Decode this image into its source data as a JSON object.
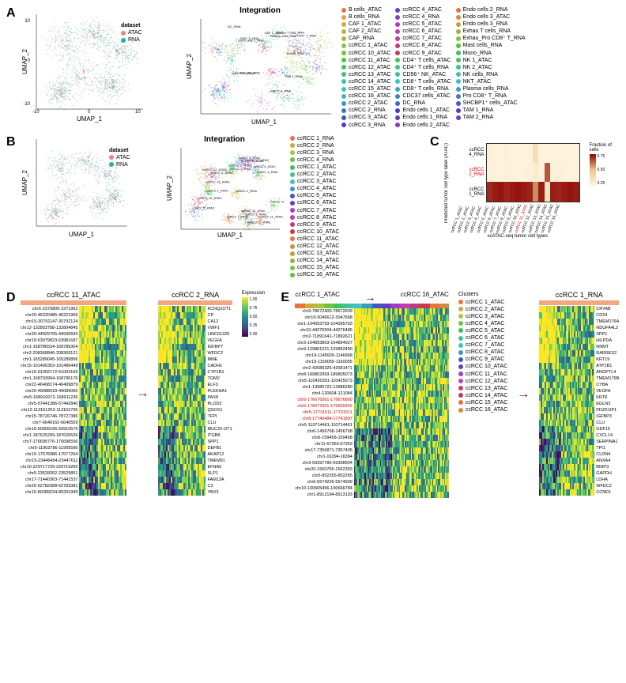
{
  "panelA": {
    "label": "A",
    "title": "Integration",
    "xlabel": "UMAP_1",
    "ylabel": "UMAP_2",
    "xlim": [
      -15,
      15
    ],
    "ylim": [
      -15,
      15
    ],
    "dataset_legend": {
      "title": "dataset",
      "items": [
        {
          "label": "ATAC",
          "color": "#f08080"
        },
        {
          "label": "RNA",
          "color": "#20b2aa"
        }
      ]
    },
    "celltype_legend": [
      {
        "label": "B cells_ATAC",
        "color": "#e8743b"
      },
      {
        "label": "B cells_RNA",
        "color": "#e8a23b"
      },
      {
        "label": "CAF 1_ATAC",
        "color": "#d4a73b"
      },
      {
        "label": "CAF 2_ATAC",
        "color": "#c4b23b"
      },
      {
        "label": "CAF_RNA",
        "color": "#a8b83b"
      },
      {
        "label": "ccRCC 1_ATAC",
        "color": "#8cc43b"
      },
      {
        "label": "ccRCC 10_ATAC",
        "color": "#6cc43b"
      },
      {
        "label": "ccRCC 11_ATAC",
        "color": "#4cc43b"
      },
      {
        "label": "ccRCC 12_ATAC",
        "color": "#3bc458"
      },
      {
        "label": "ccRCC 13_ATAC",
        "color": "#3bc478"
      },
      {
        "label": "ccRCC 14_ATAC",
        "color": "#3bc498"
      },
      {
        "label": "ccRCC 15_ATAC",
        "color": "#3bc4b8"
      },
      {
        "label": "ccRCC 16_ATAC",
        "color": "#3bb8c4"
      },
      {
        "label": "ccRCC 2_ATAC",
        "color": "#3b98c4"
      },
      {
        "label": "ccRCC 2_RNA",
        "color": "#3b78c4"
      },
      {
        "label": "ccRCC 3_ATAC",
        "color": "#3b58c4"
      },
      {
        "label": "ccRCC 3_RNA",
        "color": "#4c3bc4"
      },
      {
        "label": "ccRCC 4_ATAC",
        "color": "#6c3bc4"
      },
      {
        "label": "ccRCC 4_RNA",
        "color": "#8c3bc4"
      },
      {
        "label": "ccRCC 5_ATAC",
        "color": "#a83bc4"
      },
      {
        "label": "ccRCC 6_ATAC",
        "color": "#c43bb8"
      },
      {
        "label": "ccRCC 7_ATAC",
        "color": "#c43b98"
      },
      {
        "label": "ccRCC 8_ATAC",
        "color": "#c43b78"
      },
      {
        "label": "ccRCC 9_ATAC",
        "color": "#c43b58"
      },
      {
        "label": "CD4⁺ T cells_ATAC",
        "color": "#3bc45c"
      },
      {
        "label": "CD4⁺ T cells_RNA",
        "color": "#3bc47c"
      },
      {
        "label": "CD56⁺ NK_ATAC",
        "color": "#3bc49c"
      },
      {
        "label": "CD8⁺ T cells_ATAC",
        "color": "#3bc4bc"
      },
      {
        "label": "CD8⁺ T cells_RNA",
        "color": "#3ba4c4"
      },
      {
        "label": "CDC37 cells_ATAC",
        "color": "#3b84c4"
      },
      {
        "label": "DC_RNA",
        "color": "#3b64c4"
      },
      {
        "label": "Endo cells 1_ATAC",
        "color": "#443bc4"
      },
      {
        "label": "Endo cells 1_RNA",
        "color": "#643bc4"
      },
      {
        "label": "Endo cells 2_ATAC",
        "color": "#843bc4"
      },
      {
        "label": "Endo cells 2_RNA",
        "color": "#e8743b"
      },
      {
        "label": "Endo cells 3_ATAC",
        "color": "#d48b3b"
      },
      {
        "label": "Endo cells 3_RNA",
        "color": "#bca23b"
      },
      {
        "label": "Exhau T cells_RNA",
        "color": "#9cb23b"
      },
      {
        "label": "Exhau_Pro CD8⁺ T_RNA",
        "color": "#7cc43b"
      },
      {
        "label": "Mast cells_RNA",
        "color": "#5cc43b"
      },
      {
        "label": "Mono_RNA",
        "color": "#3bc448"
      },
      {
        "label": "NK 1_ATAC",
        "color": "#3bc468"
      },
      {
        "label": "NK 2_ATAC",
        "color": "#3bc488"
      },
      {
        "label": "NK cells_RNA",
        "color": "#3bc4a8"
      },
      {
        "label": "NKT_ATAC",
        "color": "#3bbcc4"
      },
      {
        "label": "Plasma cells_RNA",
        "color": "#3b9cc4"
      },
      {
        "label": "Pro CD8⁺ T_RNA",
        "color": "#3b7cc4"
      },
      {
        "label": "SHCBP1⁺ cells_ATAC",
        "color": "#3b5cc4"
      },
      {
        "label": "TAM 1_RNA",
        "color": "#543bc4"
      },
      {
        "label": "TAM 2_RNA",
        "color": "#743bc4"
      }
    ],
    "umap1_colors": [
      "#f08080",
      "#20b2aa"
    ],
    "umap2_labels": [
      "CD8⁺ T_RNA",
      "NK cells_RNA",
      "CD4⁺ T_RNA",
      "Exhau T cells_RNA",
      "Plasma cells_RNA",
      "ccRCC 4_RNA",
      "ccRCC 11_ATAC",
      "TAM 1_RNA",
      "DC_RNA",
      "CAF 1_ATAC",
      "Endo cells 1_RNA",
      "B cells_RNA"
    ]
  },
  "panelB": {
    "label": "B",
    "title": "Integration",
    "xlabel": "UMAP_1",
    "ylabel": "UMAP_2",
    "xlim": [
      -10,
      15
    ],
    "ylim": [
      -10,
      10
    ],
    "dataset_legend": {
      "title": "dataset",
      "items": [
        {
          "label": "ATAC",
          "color": "#f08080"
        },
        {
          "label": "RNA",
          "color": "#20b2aa"
        }
      ]
    },
    "legend": [
      {
        "label": "ccRCC 1_RNA",
        "color": "#e8743b"
      },
      {
        "label": "ccRCC 2_RNA",
        "color": "#d4a73b"
      },
      {
        "label": "ccRCC 3_RNA",
        "color": "#a8c43b"
      },
      {
        "label": "ccRCC 4_RNA",
        "color": "#6cc43b"
      },
      {
        "label": "ccRCC 1_ATAC",
        "color": "#3bc458"
      },
      {
        "label": "ccRCC 2_ATAC",
        "color": "#3bc498"
      },
      {
        "label": "ccRCC 3_ATAC",
        "color": "#3bc4c4"
      },
      {
        "label": "ccRCC 4_ATAC",
        "color": "#3b98c4"
      },
      {
        "label": "ccRCC 5_ATAC",
        "color": "#3b58c4"
      },
      {
        "label": "ccRCC 6_ATAC",
        "color": "#6c3bc4"
      },
      {
        "label": "ccRCC 7_ATAC",
        "color": "#a83bc4"
      },
      {
        "label": "ccRCC 8_ATAC",
        "color": "#c43bb8"
      },
      {
        "label": "ccRCC 9_ATAC",
        "color": "#c43b78"
      },
      {
        "label": "ccRCC 10_ATAC",
        "color": "#c43b48"
      },
      {
        "label": "ccRCC 11_ATAC",
        "color": "#e8743b"
      },
      {
        "label": "ccRCC 12_ATAC",
        "color": "#d48b3b"
      },
      {
        "label": "ccRCC 13_ATAC",
        "color": "#bca23b"
      },
      {
        "label": "ccRCC 14_ATAC",
        "color": "#9cb23b"
      },
      {
        "label": "ccRCC 15_ATAC",
        "color": "#7cc43b"
      },
      {
        "label": "ccRCC 16_ATAC",
        "color": "#5cc43b"
      }
    ]
  },
  "panelC": {
    "label": "C",
    "ylabel": "Predicted tumor cell type label (ATAC)",
    "xlabel": "scATAC-seq tumor cell types",
    "colorbar_title": "Fraction of cells",
    "colorbar_ticks": [
      "0.75",
      "0.50",
      "0.25"
    ],
    "y_categories": [
      "ccRCC 4_RNA",
      "ccRCC 2_RNA",
      "ccRCC 1_RNA"
    ],
    "x_categories": [
      "ccRCC 1_ATAC",
      "ccRCC 2_ATAC",
      "ccRCC 3_ATAC",
      "ccRCC 4_ATAC",
      "ccRCC 5_ATAC",
      "ccRCC 6_ATAC",
      "ccRCC 7_ATAC",
      "ccRCC 8_ATAC",
      "ccRCC 9_ATAC",
      "ccRCC 10_ATAC",
      "ccRCC 11_ATAC",
      "ccRCC 12_ATAC",
      "ccRCC 13_ATAC",
      "ccRCC 14_ATAC",
      "ccRCC 15_ATAC",
      "ccRCC 16_ATAC"
    ],
    "highlight_x": "ccRCC 11_ATAC",
    "highlight_y": "ccRCC 2_RNA",
    "matrix": [
      [
        0.05,
        0.03,
        0.02,
        0.04,
        0.03,
        0.02,
        0.03,
        0.04,
        0.25,
        0.03,
        0.02,
        0.03,
        0.04,
        0.03,
        0.02,
        0.03
      ],
      [
        0.05,
        0.04,
        0.03,
        0.05,
        0.04,
        0.03,
        0.04,
        0.05,
        0.1,
        0.04,
        0.78,
        0.04,
        0.05,
        0.04,
        0.03,
        0.04
      ],
      [
        0.9,
        0.93,
        0.95,
        0.91,
        0.93,
        0.95,
        0.93,
        0.91,
        0.65,
        0.93,
        0.2,
        0.93,
        0.91,
        0.93,
        0.95,
        0.93
      ]
    ],
    "colors": {
      "low": "#fef5e1",
      "mid": "#e8c88a",
      "high": "#8b0000"
    }
  },
  "panelD": {
    "label": "D",
    "heatmap1": {
      "title": "ccRCC 11_ATAC",
      "bar_color": "#f4a582",
      "rows": [
        "chrX-2370809-2371962",
        "chr20-46220485-46221969",
        "chr15-30791147-30792124",
        "chr12-132803788-132804845",
        "chr20-44929705-44930693",
        "chr19-63979823-63981687",
        "chr1-168786534-168789304",
        "chr2-208368846-208369121",
        "chr1-165289045-165289896",
        "chr15-101495353-101496449",
        "chr19-51002172-51003169",
        "chr1-168793994-168795176",
        "chr22-46408174-46409879",
        "chr20-49088018-49089060",
        "chr5-168910072-168911236",
        "chr5-57441386-57442840",
        "chr12-113161252-113162795",
        "chr15-78726746-78727386",
        "chr7-6640162-6640559",
        "chr19-50909196-50910575",
        "chr1-187625299-187626526",
        "chr7-176695776-176696556",
        "chr5-11903786-11905590",
        "chr19-17578386-17577264",
        "chr15-23446454-23447611",
        "chr10-229717729-229719265",
        "chr5-23528352-23529851",
        "chr17-71440363-71441537",
        "chr20-62782088-62783381",
        "chr10-80289234-80291999"
      ],
      "ncols": 30
    },
    "heatmap2": {
      "title": "ccRCC 2_RNA",
      "bar_color": "#f4a582",
      "rows": [
        "KCNQ1OT1",
        "CP",
        "CA12",
        "VWF1",
        "LINC01320",
        "VEGFA",
        "IGFBP7",
        "WFDC2",
        "MME",
        "CADH1",
        "CYP1B1",
        "TGM2",
        "ELF3",
        "PLEKHA1",
        "PAX8",
        "PLOD2",
        "QSOX1",
        "TFPI",
        "CLU",
        "MUC20-OT1",
        "ITGB8",
        "SPP1",
        "DEFB1",
        "AKAP12",
        "TMEM91",
        "EFNA5",
        "SLP1",
        "FAM13A",
        "C3",
        "YBX3"
      ],
      "ncols": 30
    },
    "expression_label": "Expression",
    "expression_ticks": [
      "1.00",
      "0.75",
      "0.50",
      "0.25",
      "0.00"
    ]
  },
  "panelE": {
    "label": "E",
    "heatmap1": {
      "title_left": "ccRCC 1_ATAC",
      "title_right": "ccRCC 16_ATAC",
      "rows": [
        "chr9-78672400-78672609",
        "chr19-3046612-3047668",
        "chr1-104093793-104095793",
        "chr10-44275504-44276485",
        "chr2-71891641-71892621",
        "chr3-164893803-164894927",
        "chr9-129861221-129862490",
        "chr19-1145926-1146968",
        "chr19-1159055-1160055",
        "chr2-42680325-42681471",
        "chr8-189802993-189805073",
        "chr5-110420331-110425073",
        "chr1-13985722-13986280",
        "chr4-120604-121084",
        "chr5-176676561-176676860",
        "chr5-176677501-176699342",
        "chr5-17731511-17731511",
        "chr8-17740484-17741897",
        "chr5-110714461-110714461",
        "chr6-1456768-1456768",
        "chr6-159458-159458",
        "chr11-67353-67353",
        "chr17-7356871-7357405",
        "chr1-16394-16394",
        "chr3-59397786-59398904",
        "chr20-1560765-1562393",
        "chr5-852265-852265",
        "chr6-5574226-5574909",
        "chr10-100665456-100666784",
        "chr1-8912194-8913193"
      ],
      "red_rows": [
        "chr5-176676561-176676860",
        "chr5-176677501-176699342",
        "chr5-17731511-17731511",
        "chr8-17740484-17741897"
      ],
      "ncols": 80,
      "clusters_label": "Clusters",
      "clusters": [
        {
          "label": "ccRCC 1_ATAC",
          "color": "#e8743b"
        },
        {
          "label": "ccRCC 2_ATAC",
          "color": "#d4a73b"
        },
        {
          "label": "ccRCC 3_ATAC",
          "color": "#a8c43b"
        },
        {
          "label": "ccRCC 4_ATAC",
          "color": "#6cc43b"
        },
        {
          "label": "ccRCC 5_ATAC",
          "color": "#3bc458"
        },
        {
          "label": "ccRCC 6_ATAC",
          "color": "#3bc498"
        },
        {
          "label": "ccRCC 7_ATAC",
          "color": "#3bc4c4"
        },
        {
          "label": "ccRCC 8_ATAC",
          "color": "#3b98c4"
        },
        {
          "label": "ccRCC 9_ATAC",
          "color": "#3b58c4"
        },
        {
          "label": "ccRCC 10_ATAC",
          "color": "#6c3bc4"
        },
        {
          "label": "ccRCC 11_ATAC",
          "color": "#a83bc4"
        },
        {
          "label": "ccRCC 12_ATAC",
          "color": "#c43bb8"
        },
        {
          "label": "ccRCC 13_ATAC",
          "color": "#c43b78"
        },
        {
          "label": "ccRCC 14_ATAC",
          "color": "#c43b48"
        },
        {
          "label": "ccRCC 15_ATAC",
          "color": "#e8743b"
        },
        {
          "label": "ccRCC 16_ATAC",
          "color": "#d48b3b"
        }
      ]
    },
    "heatmap2": {
      "title": "ccRCC 1_RNA",
      "bar_color": "#f4a582",
      "rows": [
        "CRYAB",
        "CD24",
        "TMEM176A",
        "NDUFA4L2",
        "SPP1",
        "HILPDA",
        "NNMT",
        "RARRES2",
        "KRT19",
        "ATP1B1",
        "ANGPTL4",
        "TMEM176B",
        "CYBA",
        "VEGFA",
        "KRT8",
        "EGLN3",
        "PDZK1IP1",
        "IGFBP3",
        "CLU",
        "GDF15",
        "CXCL14",
        "SERPINA1",
        "TPI1",
        "CLDN4",
        "ANXA4",
        "BNIP3",
        "GAPDH",
        "LDHA",
        "WFDC2",
        "CCND1"
      ],
      "ncols": 40
    }
  },
  "viridis": [
    "#440154",
    "#3b528b",
    "#21918c",
    "#5ec962",
    "#fde725"
  ]
}
